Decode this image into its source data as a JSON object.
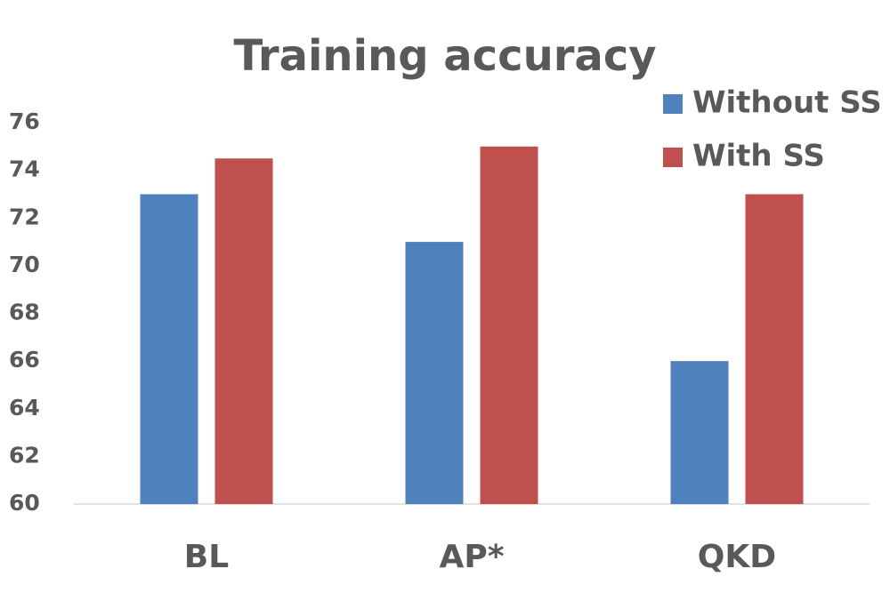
{
  "chart_data": {
    "type": "bar",
    "title": "Training accuracy",
    "categories": [
      "BL",
      "AP*",
      "QKD"
    ],
    "series": [
      {
        "name": "Without SS",
        "color": "#4f81bd",
        "values": [
          73,
          71,
          66
        ]
      },
      {
        "name": "With SS",
        "color": "#c0504d",
        "values": [
          74.5,
          75,
          73
        ]
      }
    ],
    "ylim": [
      60,
      76
    ],
    "yticks": [
      60,
      62,
      64,
      66,
      68,
      70,
      72,
      74,
      76
    ],
    "grid": false,
    "legend": "top-right"
  }
}
